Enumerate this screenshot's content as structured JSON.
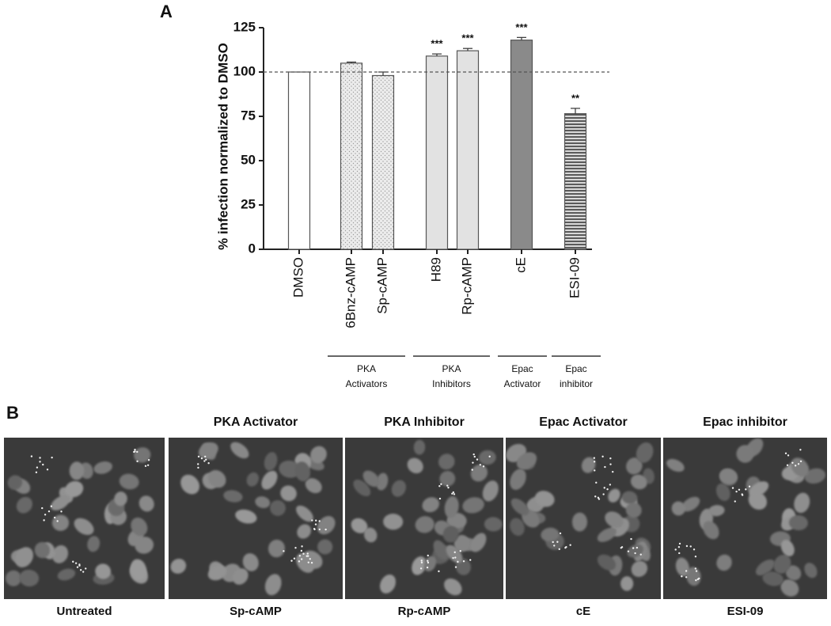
{
  "panel_a_label": "A",
  "chart_data": {
    "type": "bar",
    "ylabel": "% infection normalized  to DMSO",
    "categories": [
      "DMSO",
      "6Bnz-cAMP",
      "Sp-cAMP",
      "H89",
      "Rp-cAMP",
      "cE",
      "ESI-09"
    ],
    "values": [
      100,
      105,
      98,
      109,
      112,
      118,
      76.5
    ],
    "errors": [
      null,
      0.6,
      2,
      1.2,
      1.3,
      1.5,
      3
    ],
    "annotations": [
      null,
      null,
      null,
      "***",
      "***",
      "***",
      "**"
    ],
    "fills": [
      "#ffffff",
      "dots",
      "dots",
      "#e2e2e2",
      "#e2e2e2",
      "#8a8a8a",
      "stripes"
    ],
    "groups": [
      {
        "lines": [
          "PKA",
          "Activators"
        ],
        "members": [
          1,
          2
        ]
      },
      {
        "lines": [
          "PKA",
          "Inhibitors"
        ],
        "members": [
          3,
          4
        ]
      },
      {
        "lines": [
          "Epac",
          "Activator"
        ],
        "members": [
          5
        ]
      },
      {
        "lines": [
          "Epac",
          "inhibitor"
        ],
        "members": [
          6
        ]
      }
    ],
    "reference_line": 100,
    "ylim": [
      0,
      125
    ],
    "yticks": [
      0,
      25,
      50,
      75,
      100,
      125
    ]
  },
  "panel_b": {
    "label": "B",
    "images": [
      {
        "caption": "Untreated"
      },
      {
        "title": "PKA Activator",
        "caption": "Sp-cAMP"
      },
      {
        "title": "PKA Inhibitor",
        "caption": "Rp-cAMP"
      },
      {
        "title": "Epac Activator",
        "caption": "cE"
      },
      {
        "title": "Epac inhibitor",
        "caption": "ESI-09"
      }
    ]
  }
}
